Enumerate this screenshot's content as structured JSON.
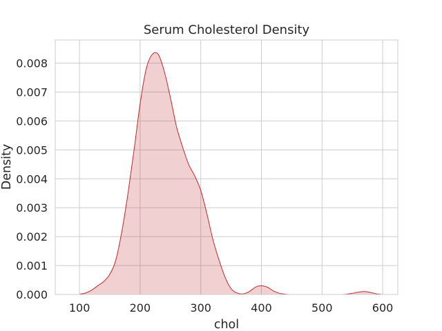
{
  "chart_data": {
    "type": "area",
    "title": "Serum Cholesterol Density",
    "xlabel": "chol",
    "ylabel": "Density",
    "xlim": [
      60,
      625
    ],
    "ylim": [
      0,
      0.0088
    ],
    "xticks": [
      100,
      200,
      300,
      400,
      500,
      600
    ],
    "yticks": [
      0.0,
      0.001,
      0.002,
      0.003,
      0.004,
      0.005,
      0.006,
      0.007,
      0.008
    ],
    "xtick_labels": [
      "100",
      "200",
      "300",
      "400",
      "500",
      "600"
    ],
    "ytick_labels": [
      "0.000",
      "0.001",
      "0.002",
      "0.003",
      "0.004",
      "0.005",
      "0.006",
      "0.007",
      "0.008"
    ],
    "grid": true,
    "line_color": "#c0282d",
    "fill_color": "#c0282d",
    "fill_opacity": 0.22,
    "series": [
      {
        "x": [
          100,
          110,
          120,
          130,
          140,
          150,
          160,
          170,
          180,
          190,
          200,
          210,
          220,
          230,
          240,
          250,
          260,
          270,
          280,
          290,
          300,
          310,
          320,
          330,
          340,
          350,
          360,
          370,
          380,
          390,
          400,
          410,
          420,
          430,
          440,
          450,
          460,
          470,
          480,
          490,
          500,
          510,
          520,
          530,
          540,
          550,
          560,
          570,
          580,
          590,
          600
        ],
        "y": [
          1e-05,
          5e-05,
          0.00015,
          0.0003,
          0.00045,
          0.0007,
          0.0012,
          0.0022,
          0.0035,
          0.005,
          0.0066,
          0.0078,
          0.0083,
          0.0083,
          0.0077,
          0.0068,
          0.0058,
          0.0051,
          0.0045,
          0.0041,
          0.0036,
          0.0028,
          0.0019,
          0.0012,
          0.0006,
          0.0002,
          5e-05,
          2e-05,
          0.0001,
          0.00025,
          0.0003,
          0.00025,
          0.00012,
          4e-05,
          1e-05,
          0.0,
          0.0,
          0.0,
          0.0,
          0.0,
          0.0,
          0.0,
          0.0,
          0.0,
          1e-05,
          4e-05,
          8e-05,
          0.0001,
          7e-05,
          2e-05,
          0.0
        ]
      }
    ]
  }
}
